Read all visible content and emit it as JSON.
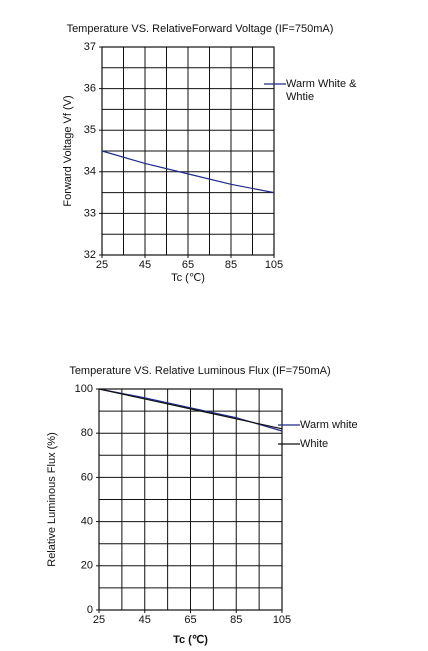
{
  "chart_data": [
    {
      "type": "line",
      "title": "Temperature VS. RelativeForward  Voltage (IF=750mA)",
      "x_label": "Tc (℃)",
      "y_label": "Forward  Voltage Vf  (V)",
      "x": [
        25,
        45,
        65,
        85,
        105
      ],
      "series": [
        {
          "name": "Warm White & Whtie",
          "color": "#1f2a8a",
          "values": [
            34.5,
            34.2,
            33.95,
            33.7,
            33.5
          ]
        }
      ],
      "xlim": [
        25,
        105
      ],
      "xticks": [
        25,
        45,
        65,
        85,
        105
      ],
      "ylim": [
        32,
        37
      ],
      "yticks": [
        32,
        33,
        34,
        35,
        36,
        37
      ],
      "x_grid": [
        25,
        35,
        45,
        55,
        65,
        75,
        85,
        95,
        105
      ],
      "y_grid": [
        32,
        32.5,
        33,
        33.5,
        34,
        34.5,
        35,
        35.5,
        36,
        36.5,
        37
      ]
    },
    {
      "type": "line",
      "title": "Temperature VS. Relative Luminous Flux (IF=750mA)",
      "x_label": "Tc (℃)",
      "y_label": "Relative Luminous Flux  (%)",
      "x": [
        25,
        45,
        65,
        85,
        105
      ],
      "series": [
        {
          "name": "Warm white",
          "color": "#1f2a8a",
          "values": [
            100,
            96,
            91.5,
            87,
            81
          ]
        },
        {
          "name": "White",
          "color": "#111111",
          "values": [
            100,
            95.5,
            91,
            86.5,
            82
          ]
        }
      ],
      "xlim": [
        25,
        105
      ],
      "xticks": [
        25,
        45,
        65,
        85,
        105
      ],
      "ylim": [
        0,
        100
      ],
      "yticks": [
        0,
        20,
        40,
        60,
        80,
        100
      ],
      "x_grid": [
        25,
        35,
        45,
        55,
        65,
        75,
        85,
        95,
        105
      ],
      "y_grid": [
        0,
        10,
        20,
        30,
        40,
        50,
        60,
        70,
        80,
        90,
        100
      ]
    }
  ]
}
